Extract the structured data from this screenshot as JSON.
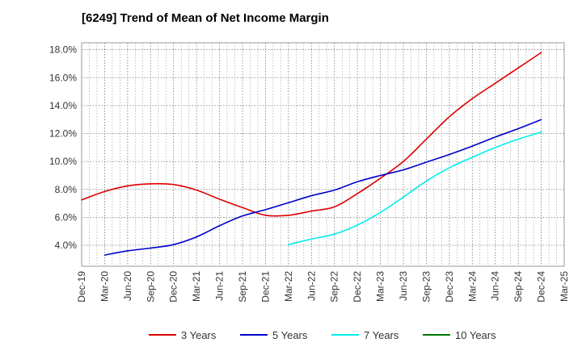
{
  "chart_data": {
    "type": "line",
    "title": "[6249]  Trend of Mean of Net Income Margin",
    "xlabel": "",
    "ylabel": "",
    "x_ticks": [
      "Dec-19",
      "Mar-20",
      "Jun-20",
      "Sep-20",
      "Dec-20",
      "Mar-21",
      "Jun-21",
      "Sep-21",
      "Dec-21",
      "Mar-22",
      "Jun-22",
      "Sep-22",
      "Dec-22",
      "Mar-23",
      "Jun-23",
      "Sep-23",
      "Dec-23",
      "Mar-24",
      "Jun-24",
      "Sep-24",
      "Dec-24",
      "Mar-25"
    ],
    "y_ticks": [
      "4.0%",
      "6.0%",
      "8.0%",
      "10.0%",
      "12.0%",
      "14.0%",
      "16.0%",
      "18.0%"
    ],
    "ylim": [
      2.5,
      18.5
    ],
    "grid": true,
    "legend_position": "bottom",
    "series": [
      {
        "name": "3 Years",
        "color": "#dd0000",
        "x": [
          "Dec-19",
          "Mar-20",
          "Jun-20",
          "Sep-20",
          "Dec-20",
          "Mar-21",
          "Jun-21",
          "Sep-21",
          "Dec-21",
          "Mar-22",
          "Jun-22",
          "Sep-22",
          "Dec-22",
          "Mar-23",
          "Jun-23",
          "Sep-23",
          "Dec-23",
          "Mar-24",
          "Jun-24",
          "Sep-24",
          "Dec-24"
        ],
        "values": [
          7.25,
          7.85,
          8.25,
          8.4,
          8.35,
          7.95,
          7.3,
          6.7,
          6.15,
          6.15,
          6.45,
          6.75,
          7.7,
          8.8,
          10.0,
          11.6,
          13.2,
          14.5,
          15.6,
          16.7,
          17.8
        ]
      },
      {
        "name": "5 Years",
        "color": "#0000cc",
        "x": [
          "Mar-20",
          "Jun-20",
          "Sep-20",
          "Dec-20",
          "Mar-21",
          "Jun-21",
          "Sep-21",
          "Dec-21",
          "Mar-22",
          "Jun-22",
          "Sep-22",
          "Dec-22",
          "Mar-23",
          "Jun-23",
          "Sep-23",
          "Dec-23",
          "Mar-24",
          "Jun-24",
          "Sep-24",
          "Dec-24"
        ],
        "values": [
          3.3,
          3.6,
          3.8,
          4.05,
          4.6,
          5.4,
          6.1,
          6.55,
          7.05,
          7.55,
          7.95,
          8.55,
          9.0,
          9.4,
          9.95,
          10.5,
          11.1,
          11.75,
          12.35,
          13.0
        ]
      },
      {
        "name": "7 Years",
        "color": "#00eeee",
        "x": [
          "Mar-22",
          "Jun-22",
          "Sep-22",
          "Dec-22",
          "Mar-23",
          "Jun-23",
          "Sep-23",
          "Dec-23",
          "Mar-24",
          "Jun-24",
          "Sep-24",
          "Dec-24"
        ],
        "values": [
          4.05,
          4.45,
          4.8,
          5.45,
          6.35,
          7.45,
          8.6,
          9.55,
          10.3,
          11.0,
          11.6,
          12.1
        ]
      },
      {
        "name": "10 Years",
        "color": "#007700",
        "x": [],
        "values": []
      }
    ]
  }
}
